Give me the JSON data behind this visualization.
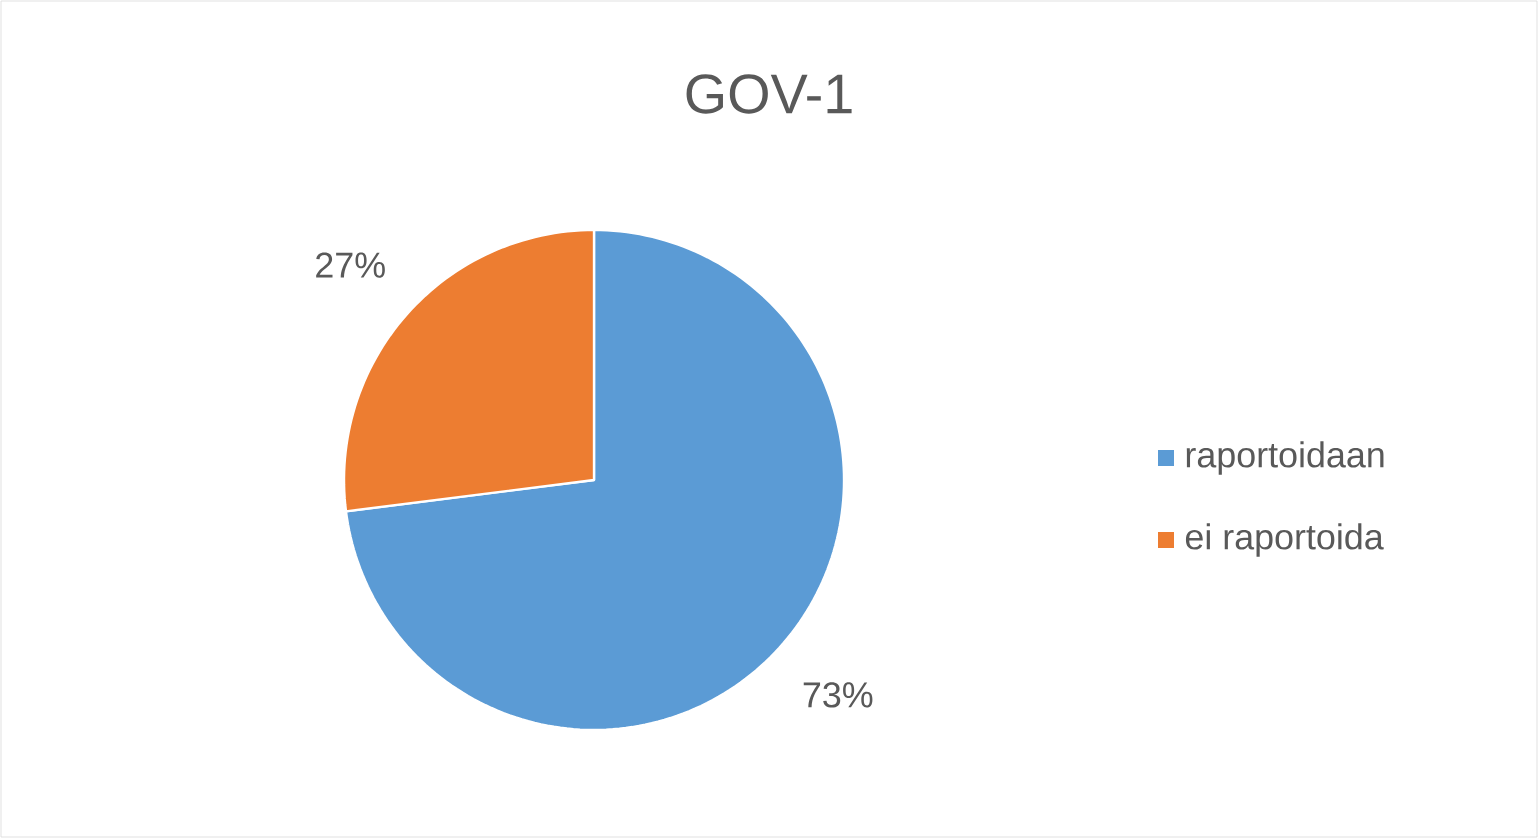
{
  "chart_data": {
    "type": "pie",
    "title": "GOV-1",
    "categories": [
      "raportoidaan",
      "ei raportoida"
    ],
    "values": [
      73,
      27
    ],
    "colors": [
      "#5b9bd5",
      "#ed7d31"
    ],
    "value_labels": [
      "73%",
      "27%"
    ],
    "legend": "right"
  }
}
